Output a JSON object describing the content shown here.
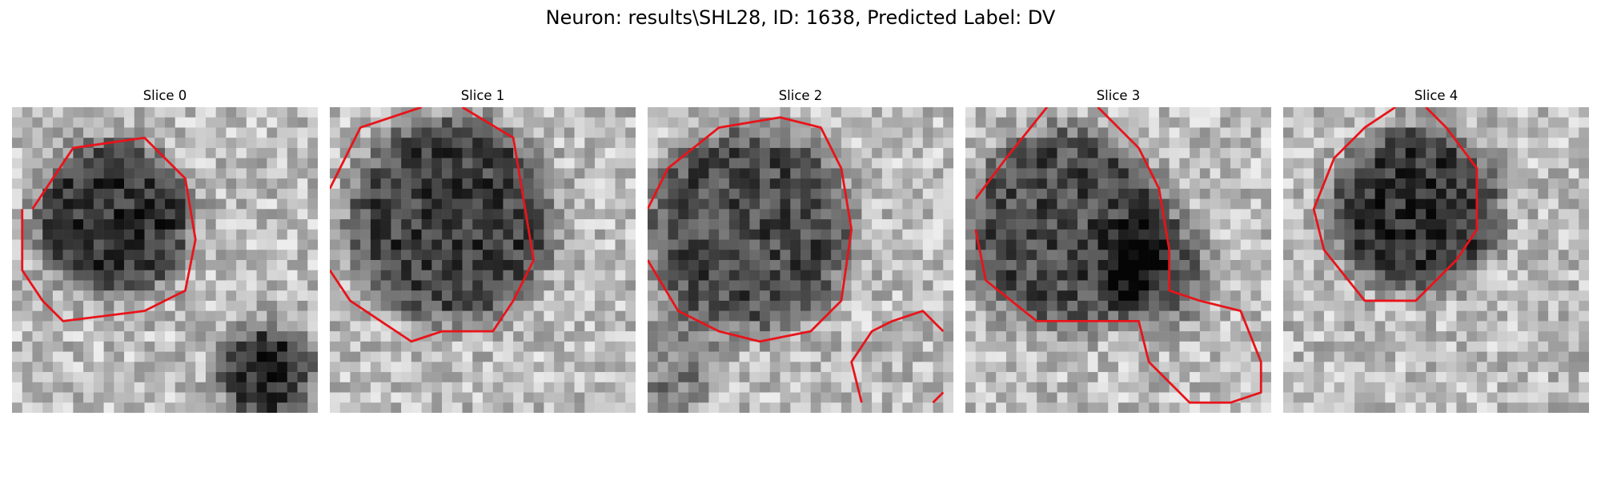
{
  "figure": {
    "title": "Neuron: results\\SHL28, ID: 1638, Predicted Label: DV"
  },
  "panels": [
    {
      "title": "Slice 0"
    },
    {
      "title": "Slice 1"
    },
    {
      "title": "Slice 2"
    },
    {
      "title": "Slice 3"
    },
    {
      "title": "Slice 4"
    }
  ],
  "colors": {
    "contour": "#e8141a",
    "background": "#ffffff"
  }
}
